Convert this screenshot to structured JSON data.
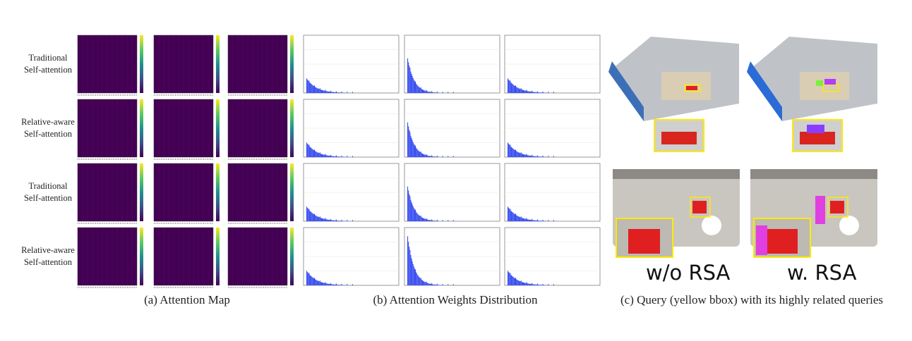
{
  "rows": [
    [
      "Traditional",
      "Self-attention"
    ],
    [
      "Relative-aware",
      "Self-attention"
    ],
    [
      "Traditional",
      "Self-attention"
    ],
    [
      "Relative-aware",
      "Self-attention"
    ]
  ],
  "captions": {
    "a": "(a) Attention Map",
    "b": "(b) Attention Weights Distribution",
    "c": "(c) Query (yellow bbox) with its highly related queries"
  },
  "labels": [
    "w/o RSA",
    "w. RSA"
  ]
}
